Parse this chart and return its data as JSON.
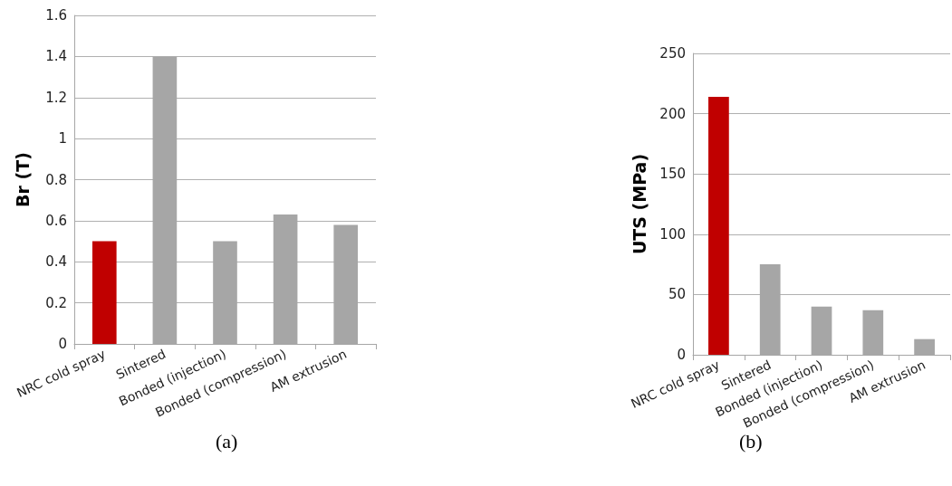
{
  "chart_data": [
    {
      "type": "bar",
      "ylabel": "Br (T)",
      "categories": [
        "NRC cold spray",
        "Sintered",
        "Bonded (injection)",
        "Bonded (compression)",
        "AM extrusion"
      ],
      "values": [
        0.5,
        1.4,
        0.5,
        0.63,
        0.58
      ],
      "colors": [
        "#c00000",
        "#a6a6a6",
        "#a6a6a6",
        "#a6a6a6",
        "#a6a6a6"
      ],
      "ylim": [
        0,
        1.6
      ],
      "yticks": [
        0,
        0.2,
        0.4,
        0.6,
        0.8,
        1,
        1.2,
        1.4,
        1.6
      ],
      "grid": "y",
      "annotations": [
        "(a)"
      ]
    },
    {
      "type": "bar",
      "ylabel": "UTS (MPa)",
      "categories": [
        "NRC cold spray",
        "Sintered",
        "Bonded (injection)",
        "Bonded (compression)",
        "AM extrusion"
      ],
      "values": [
        214,
        75,
        40,
        37,
        13
      ],
      "colors": [
        "#c00000",
        "#a6a6a6",
        "#a6a6a6",
        "#a6a6a6",
        "#a6a6a6"
      ],
      "ylim": [
        0,
        250
      ],
      "yticks": [
        0,
        50,
        100,
        150,
        200,
        250
      ],
      "grid": "y",
      "annotations": [
        "(b)"
      ]
    }
  ]
}
